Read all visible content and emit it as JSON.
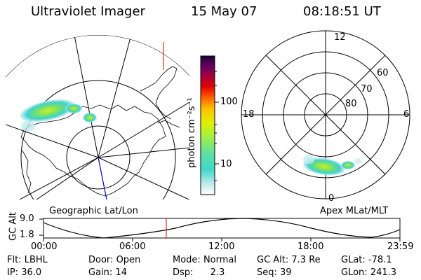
{
  "header": {
    "title": "Ultraviolet Imager",
    "date": "15 May 07",
    "time": "08:18:51 UT"
  },
  "geo_panel": {
    "label": "Geographic Lat/Lon"
  },
  "mlt_panel": {
    "label": "Apex MLat/MLT",
    "mlt_labels": [
      "12",
      "18",
      "6",
      "0"
    ],
    "lat_labels": [
      "60",
      "70",
      "80"
    ]
  },
  "colorbar": {
    "unit_label": "photon cm⁻²s⁻¹",
    "ticks": [
      "100",
      "10"
    ]
  },
  "altitude_plot": {
    "ylabel": "GC Alt",
    "y_ticks": [
      "9.0",
      "1.8"
    ],
    "x_ticks": [
      "00:00",
      "06:00",
      "12:00",
      "18:00",
      "23:59"
    ]
  },
  "info": {
    "row1": [
      {
        "label": "Flt:",
        "value": "LBHL"
      },
      {
        "label": "Door:",
        "value": "Open"
      },
      {
        "label": "Mode:",
        "value": "Normal"
      },
      {
        "label": "GC Alt:",
        "value": "7.3 Re"
      },
      {
        "label": "GLat:",
        "value": "-78.1"
      }
    ],
    "row2": [
      {
        "label": "IP:",
        "value": "36.0"
      },
      {
        "label": "Gain:",
        "value": "14"
      },
      {
        "label": "Dsp:",
        "value": "2.3"
      },
      {
        "label": "Seq:",
        "value": "39"
      },
      {
        "label": "GLon:",
        "value": "241.3"
      }
    ]
  },
  "colors": {
    "colorbar": [
      "#ffffff",
      "#bfe8e8",
      "#40d8c8",
      "#60e0a0",
      "#a0f040",
      "#e0f000",
      "#ffc000",
      "#ff6000",
      "#e00000",
      "#a00040",
      "#600060",
      "#200030"
    ],
    "aurora_core": "#a0f040",
    "aurora_edge": "#40d8c8",
    "marker": "#cc0000",
    "track": "#0000cc"
  }
}
